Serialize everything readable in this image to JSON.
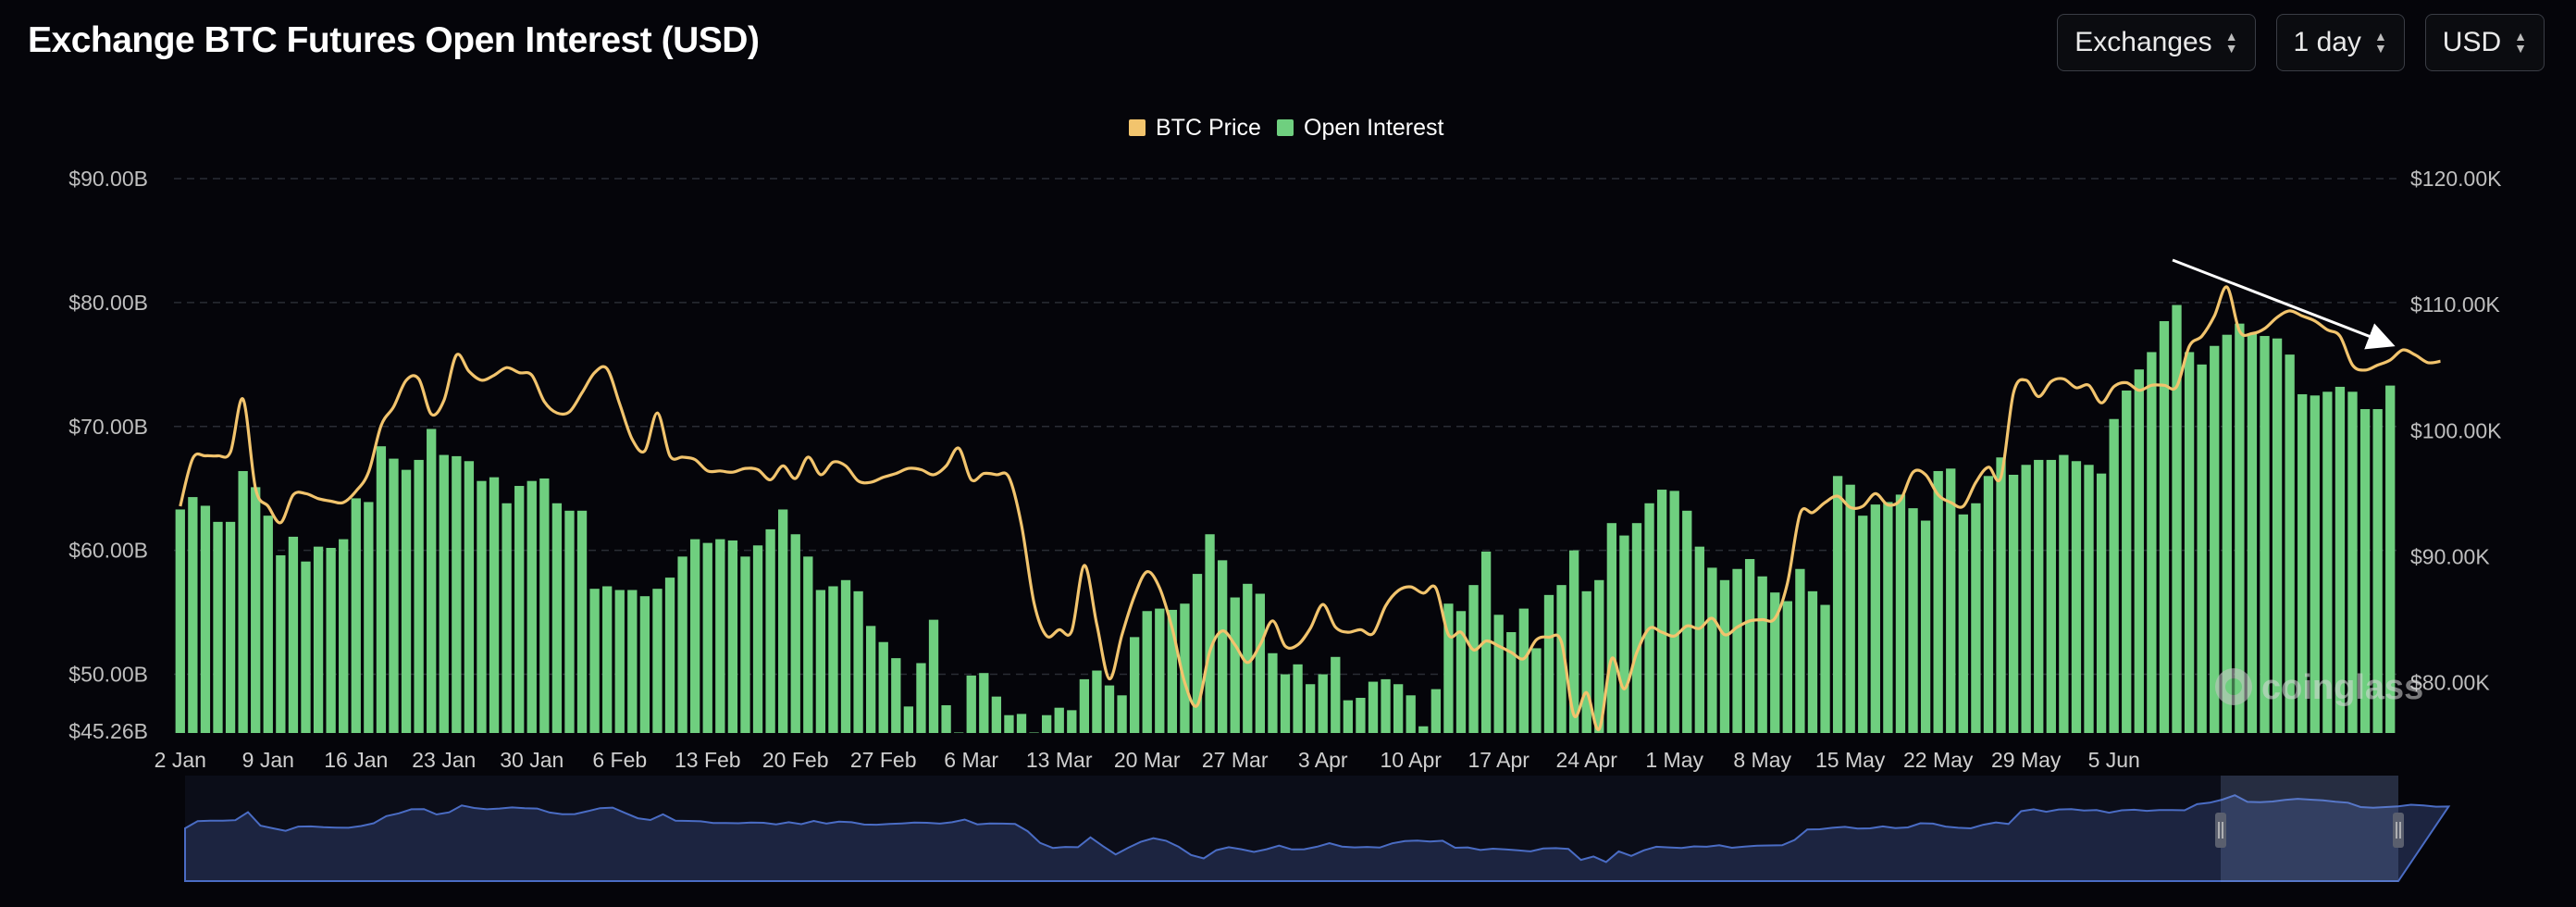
{
  "header": {
    "title": "Exchange BTC Futures Open Interest (USD)"
  },
  "controls": [
    {
      "label": "Exchanges",
      "icon": "chevron-updown-icon"
    },
    {
      "label": "1 day",
      "icon": "chevron-updown-icon"
    },
    {
      "label": "USD",
      "icon": "chevron-updown-icon"
    }
  ],
  "watermark": "coinglass",
  "colors": {
    "price": "#f2c46d",
    "open_interest": "#6fcf7f",
    "background": "#05050a",
    "navigator": "#4a6cc4"
  },
  "chart_data": {
    "type": "bar",
    "legend": [
      {
        "name": "BTC Price",
        "color": "#f2c46d",
        "type": "line"
      },
      {
        "name": "Open Interest",
        "color": "#6fcf7f",
        "type": "bar"
      }
    ],
    "legend_position": "top-center",
    "x_ticks": [
      "2 Jan",
      "9 Jan",
      "16 Jan",
      "23 Jan",
      "30 Jan",
      "6 Feb",
      "13 Feb",
      "20 Feb",
      "27 Feb",
      "6 Mar",
      "13 Mar",
      "20 Mar",
      "27 Mar",
      "3 Apr",
      "10 Apr",
      "17 Apr",
      "24 Apr",
      "1 May",
      "8 May",
      "15 May",
      "22 May",
      "29 May",
      "5 Jun"
    ],
    "y_left": {
      "ticks": [
        "$90.00B",
        "$80.00B",
        "$70.00B",
        "$60.00B",
        "$50.00B",
        "$45.26B"
      ],
      "min": 45.26,
      "max": 90
    },
    "y_right": {
      "ticks": [
        "$120.00K",
        "$110.00K",
        "$100.00K",
        "$90.00K",
        "$80.00K"
      ],
      "min": 76,
      "max": 120
    },
    "grid": "horizontal-dashed",
    "annotation": "downward trend arrow from 22 May to 5 Jun",
    "series": [
      {
        "name": "Open Interest",
        "unit": "USD billions",
        "values": [
          63.3,
          64.3,
          63.6,
          62.3,
          62.3,
          66.4,
          65.1,
          62.8,
          59.6,
          61.1,
          59.1,
          60.3,
          60.2,
          60.9,
          64.2,
          63.9,
          68.4,
          67.4,
          66.5,
          67.3,
          69.8,
          67.7,
          67.6,
          67.2,
          65.6,
          65.9,
          63.8,
          65.2,
          65.6,
          65.8,
          63.8,
          63.2,
          63.2,
          56.9,
          57.1,
          56.8,
          56.8,
          56.3,
          56.9,
          57.8,
          59.5,
          60.9,
          60.6,
          60.9,
          60.8,
          59.5,
          60.4,
          61.7,
          63.3,
          61.3,
          59.5,
          56.8,
          57.1,
          57.6,
          56.7,
          53.9,
          52.6,
          51.3,
          47.4,
          50.9,
          54.4,
          47.5,
          45.3,
          49.9,
          50.1,
          48.2,
          46.7,
          46.8,
          45.3,
          46.7,
          47.3,
          47.1,
          49.6,
          50.3,
          49.1,
          48.3,
          53.0,
          55.1,
          55.3,
          55.2,
          55.7,
          58.1,
          61.3,
          59.2,
          56.2,
          57.3,
          56.5,
          51.7,
          50.0,
          50.8,
          49.2,
          50.0,
          51.4,
          47.9,
          48.1,
          49.4,
          49.6,
          49.2,
          48.3,
          45.8,
          48.8,
          55.7,
          55.1,
          57.2,
          59.9,
          54.8,
          53.4,
          55.3,
          52.1,
          56.4,
          57.2,
          60.0,
          56.7,
          57.6,
          62.2,
          61.2,
          62.2,
          63.8,
          64.9,
          64.8,
          63.2,
          60.3,
          58.6,
          57.6,
          58.5,
          59.3,
          57.9,
          56.6,
          55.9,
          58.5,
          56.7,
          55.6,
          66.0,
          65.3,
          62.8,
          63.7,
          63.9,
          64.5,
          63.4,
          62.4,
          66.4,
          66.6,
          62.9,
          63.8,
          66.0,
          67.5,
          66.1,
          66.9,
          67.3,
          67.3,
          67.7,
          67.2,
          66.9,
          66.2,
          70.6,
          72.9,
          74.6,
          76.0,
          78.5,
          79.8,
          76.0,
          75.0,
          76.5,
          77.4,
          78.3,
          77.5,
          77.3,
          77.1,
          75.8,
          72.6,
          72.5,
          72.8,
          73.2,
          72.8,
          71.4,
          71.4,
          73.3
        ]
      },
      {
        "name": "BTC Price",
        "unit": "USD thousands",
        "values": [
          94.0,
          97.8,
          98.0,
          98.0,
          98.3,
          102.5,
          95.4,
          94.0,
          92.7,
          94.9,
          95.0,
          94.6,
          94.4,
          94.3,
          95.2,
          96.7,
          100.4,
          101.9,
          104.0,
          104.1,
          101.3,
          102.4,
          106.0,
          104.7,
          104.0,
          104.4,
          105.0,
          104.6,
          104.4,
          102.3,
          101.4,
          101.5,
          103.0,
          104.6,
          104.9,
          102.1,
          99.3,
          98.4,
          101.4,
          98.0,
          97.9,
          97.7,
          96.8,
          96.8,
          96.7,
          97.0,
          96.9,
          96.1,
          97.2,
          96.2,
          97.9,
          96.5,
          97.5,
          97.2,
          96.0,
          95.9,
          96.3,
          96.6,
          97.0,
          96.9,
          96.5,
          97.2,
          98.6,
          96.1,
          96.6,
          96.5,
          96.3,
          92.5,
          86.3,
          83.7,
          84.2,
          84.1,
          89.3,
          84.6,
          80.3,
          83.8,
          86.9,
          88.8,
          87.5,
          84.3,
          80.0,
          78.2,
          82.5,
          84.1,
          83.0,
          81.6,
          83.0,
          84.9,
          82.9,
          83.0,
          84.3,
          86.2,
          84.4,
          84.0,
          84.2,
          83.9,
          86.1,
          87.3,
          87.6,
          87.1,
          87.5,
          83.8,
          84.0,
          82.6,
          83.3,
          82.9,
          82.4,
          81.9,
          83.4,
          83.6,
          83.2,
          77.4,
          79.2,
          76.3,
          81.9,
          79.5,
          82.4,
          84.3,
          84.0,
          83.7,
          84.5,
          84.3,
          85.1,
          83.8,
          84.4,
          84.9,
          85.0,
          85.1,
          87.9,
          93.4,
          93.5,
          94.3,
          94.8,
          93.9,
          94.0,
          95.0,
          94.1,
          94.5,
          96.7,
          96.5,
          94.9,
          94.3,
          94.0,
          95.9,
          97.1,
          96.3,
          103.0,
          104.0,
          102.7,
          103.9,
          104.1,
          103.4,
          103.6,
          102.2,
          103.5,
          103.8,
          103.2,
          103.6,
          103.6,
          103.5,
          106.7,
          107.5,
          109.1,
          111.4,
          107.9,
          107.7,
          108.1,
          109.0,
          109.5,
          109.1,
          108.7,
          108.0,
          107.5,
          105.2,
          104.8,
          105.2,
          105.6,
          106.4,
          106.0,
          105.4,
          105.5
        ]
      }
    ]
  }
}
